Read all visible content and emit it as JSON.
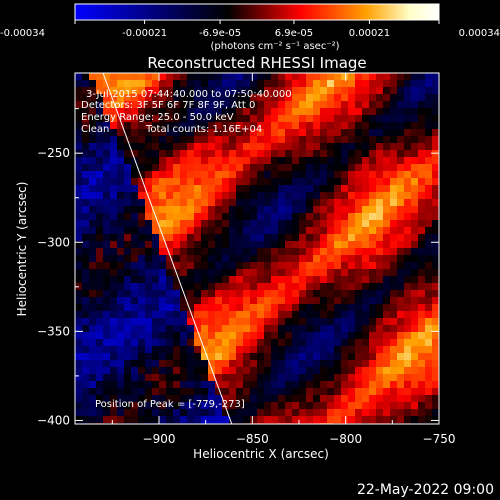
{
  "colorbar": {
    "min": -0.00034,
    "max": 0.00034,
    "ticks": [
      "-0.00034",
      "-0.00021",
      "-6.9e-05",
      "6.9e-05",
      "0.00021",
      "0.00034"
    ],
    "tick_values": [
      -0.00034,
      -0.00021,
      -6.9e-05,
      6.9e-05,
      0.00021,
      0.00034
    ],
    "unit_label": "(photons cm⁻² s⁻¹ asec⁻²)",
    "colors": [
      "#0000ff",
      "#000000",
      "#ff0000",
      "#ffa000",
      "#ffffc8",
      "#ffffff"
    ]
  },
  "chart_data": {
    "type": "heatmap",
    "title": "Reconstructed RHESSI Image",
    "xlabel": "Heliocentric X (arcsec)",
    "ylabel": "Heliocentric Y (arcsec)",
    "xlim": [
      -945,
      -750
    ],
    "ylim": [
      -402,
      -205
    ],
    "x_ticks": [
      -900,
      -850,
      -800,
      -750
    ],
    "y_ticks": [
      -400,
      -350,
      -300,
      -250
    ],
    "annotations": {
      "time_range": "3-Jul-2015 07:44:40.000 to 07:50:40.000",
      "detectors": "Detectors: 3F 5F 6F 7F 8F 9F, Att 0",
      "energy": "Energy Range: 25.0 - 50.0 keV",
      "method": "Clean",
      "counts": "Total counts: 1.16E+04",
      "peak": "Position of Peak = [-779,-273]"
    },
    "peak_position": [
      -779,
      -273
    ],
    "limb_line": [
      [
        -930,
        -205
      ],
      [
        -861,
        -402
      ]
    ],
    "grid": false
  },
  "footer": {
    "date": "22-May-2022 09:00"
  }
}
